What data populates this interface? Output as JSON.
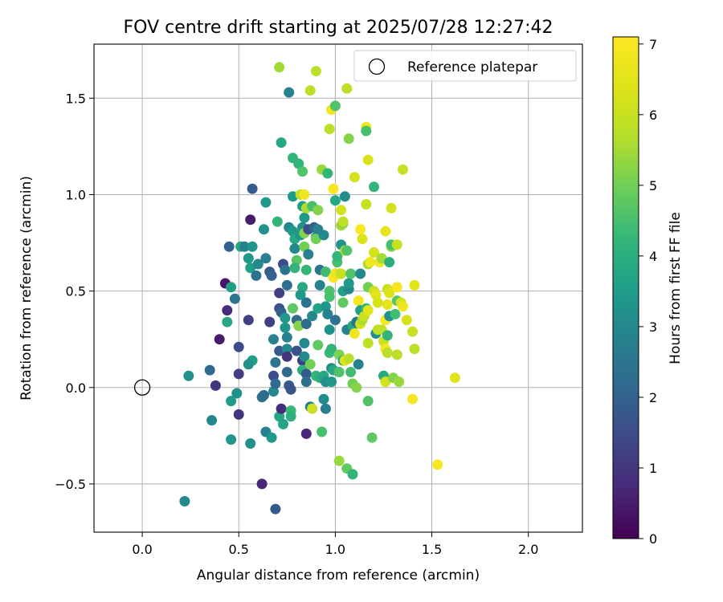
{
  "chart_data": {
    "type": "scatter",
    "title": "FOV centre drift starting at 2025/07/28 12:27:42",
    "xlabel": "Angular distance from reference (arcmin)",
    "ylabel": "Rotation from reference (arcmin)",
    "xlim": [
      -0.25,
      2.28
    ],
    "ylim": [
      -0.75,
      1.78
    ],
    "xticks": [
      0.0,
      0.5,
      1.0,
      1.5,
      2.0
    ],
    "xtick_labels": [
      "0.0",
      "0.5",
      "1.0",
      "1.5",
      "2.0"
    ],
    "yticks": [
      -0.5,
      0.0,
      0.5,
      1.0,
      1.5
    ],
    "ytick_labels": [
      "−0.5",
      "0.0",
      "0.5",
      "1.0",
      "1.5"
    ],
    "grid": true,
    "legend": {
      "placement": "top-right",
      "entries": [
        "Reference platepar"
      ]
    },
    "reference_point": {
      "x": 0.0,
      "y": 0.0,
      "label": "Reference platepar"
    },
    "colorbar": {
      "label": "Hours from first FF file",
      "range": [
        0,
        7.1
      ],
      "ticks": [
        0,
        1,
        2,
        3,
        4,
        5,
        6,
        7
      ],
      "tick_labels": [
        "0",
        "1",
        "2",
        "3",
        "4",
        "5",
        "6",
        "7"
      ],
      "colormap": "viridis"
    },
    "points": [
      [
        0.69,
        -0.63,
        1.8
      ],
      [
        0.62,
        -0.5,
        0.7
      ],
      [
        0.22,
        -0.59,
        3.0
      ],
      [
        0.56,
        -0.29,
        3.2
      ],
      [
        0.46,
        -0.27,
        3.3
      ],
      [
        0.36,
        -0.17,
        3.0
      ],
      [
        0.24,
        0.06,
        3.2
      ],
      [
        0.35,
        0.09,
        2.2
      ],
      [
        0.38,
        0.01,
        1.0
      ],
      [
        0.4,
        0.25,
        0.5
      ],
      [
        0.44,
        0.4,
        0.8
      ],
      [
        0.43,
        0.54,
        0.4
      ],
      [
        0.45,
        0.73,
        2.0
      ],
      [
        0.46,
        0.52,
        3.6
      ],
      [
        0.48,
        0.46,
        2.5
      ],
      [
        0.44,
        0.34,
        3.8
      ],
      [
        0.5,
        0.21,
        1.5
      ],
      [
        0.5,
        0.07,
        1.2
      ],
      [
        0.5,
        -0.14,
        1.0
      ],
      [
        0.49,
        -0.03,
        3.2
      ],
      [
        0.46,
        -0.07,
        3.5
      ],
      [
        0.56,
        0.87,
        0.5
      ],
      [
        0.57,
        1.03,
        1.8
      ],
      [
        0.51,
        0.73,
        3.8
      ],
      [
        0.53,
        0.73,
        2.8
      ],
      [
        0.55,
        0.67,
        3.4
      ],
      [
        0.56,
        0.62,
        3.6
      ],
      [
        0.57,
        0.73,
        3.3
      ],
      [
        0.59,
        0.58,
        2.4
      ],
      [
        0.6,
        0.64,
        3.0
      ],
      [
        0.55,
        0.35,
        1.2
      ],
      [
        0.57,
        0.14,
        3.6
      ],
      [
        0.55,
        0.12,
        3.2
      ],
      [
        0.62,
        -0.05,
        2.5
      ],
      [
        0.64,
        -0.23,
        2.8
      ],
      [
        0.67,
        -0.26,
        3.4
      ],
      [
        0.71,
        -0.15,
        3.8
      ],
      [
        0.73,
        -0.19,
        3.7
      ],
      [
        0.63,
        -0.04,
        2.2
      ],
      [
        0.68,
        -0.02,
        3.0
      ],
      [
        0.63,
        0.82,
        3.2
      ],
      [
        0.64,
        0.96,
        3.4
      ],
      [
        0.66,
        0.6,
        1.8
      ],
      [
        0.64,
        0.67,
        2.8
      ],
      [
        0.67,
        0.58,
        2.0
      ],
      [
        0.66,
        0.34,
        1.2
      ],
      [
        0.68,
        0.25,
        2.8
      ],
      [
        0.69,
        0.13,
        2.5
      ],
      [
        0.68,
        0.06,
        1.5
      ],
      [
        0.69,
        0.02,
        2.2
      ],
      [
        0.71,
        0.19,
        1.8
      ],
      [
        0.7,
        0.86,
        4.2
      ],
      [
        0.72,
        1.27,
        3.8
      ],
      [
        0.71,
        1.66,
        5.5
      ],
      [
        0.73,
        0.64,
        1.5
      ],
      [
        0.71,
        0.41,
        1.6
      ],
      [
        0.71,
        0.49,
        1.2
      ],
      [
        0.72,
        0.39,
        2.0
      ],
      [
        0.74,
        0.61,
        2.5
      ],
      [
        0.75,
        0.53,
        2.3
      ],
      [
        0.74,
        0.36,
        3.4
      ],
      [
        0.74,
        0.31,
        3.3
      ],
      [
        0.75,
        0.26,
        2.8
      ],
      [
        0.75,
        0.2,
        3.0
      ],
      [
        0.75,
        0.16,
        1.0
      ],
      [
        0.75,
        0.08,
        2.2
      ],
      [
        0.76,
        0.01,
        1.8
      ],
      [
        0.77,
        -0.01,
        1.7
      ],
      [
        0.72,
        -0.11,
        0.8
      ],
      [
        0.77,
        -0.12,
        4.3
      ],
      [
        0.77,
        -0.15,
        4.0
      ],
      [
        0.76,
        1.53,
        2.8
      ],
      [
        0.76,
        0.83,
        3.0
      ],
      [
        0.78,
        0.81,
        3.4
      ],
      [
        0.78,
        1.19,
        4.2
      ],
      [
        0.79,
        0.77,
        3.8
      ],
      [
        0.79,
        0.72,
        3.0
      ],
      [
        0.8,
        0.66,
        4.7
      ],
      [
        0.79,
        0.62,
        4.2
      ],
      [
        0.78,
        0.41,
        4.8
      ],
      [
        0.8,
        0.35,
        2.2
      ],
      [
        0.81,
        0.32,
        5.2
      ],
      [
        0.8,
        0.19,
        1.6
      ],
      [
        0.78,
        0.99,
        3.5
      ],
      [
        0.81,
        1.16,
        4.2
      ],
      [
        0.82,
        1.0,
        5.8
      ],
      [
        0.83,
        0.94,
        3.6
      ],
      [
        0.83,
        0.83,
        3.2
      ],
      [
        0.82,
        0.79,
        3.4
      ],
      [
        0.83,
        0.52,
        3.8
      ],
      [
        0.82,
        0.48,
        3.4
      ],
      [
        0.83,
        0.14,
        1.2
      ],
      [
        0.83,
        0.09,
        4.0
      ],
      [
        0.83,
        1.12,
        4.6
      ],
      [
        0.84,
        1.0,
        6.8
      ],
      [
        0.84,
        0.88,
        3.4
      ],
      [
        0.85,
        0.93,
        4.6
      ],
      [
        0.84,
        0.8,
        5.2
      ],
      [
        0.84,
        0.73,
        5.0
      ],
      [
        0.85,
        0.61,
        4.2
      ],
      [
        0.85,
        0.44,
        2.4
      ],
      [
        0.85,
        0.33,
        2.2
      ],
      [
        0.84,
        0.23,
        3.0
      ],
      [
        0.84,
        0.16,
        3.0
      ],
      [
        0.85,
        0.07,
        1.8
      ],
      [
        0.85,
        0.03,
        2.3
      ],
      [
        0.85,
        -0.24,
        0.7
      ],
      [
        0.86,
        0.82,
        1.5
      ],
      [
        0.86,
        0.69,
        2.8
      ],
      [
        0.85,
        0.93,
        5.6
      ],
      [
        0.87,
        1.54,
        5.8
      ],
      [
        0.88,
        0.94,
        4.5
      ],
      [
        0.87,
        0.12,
        5.0
      ],
      [
        0.88,
        0.37,
        3.0
      ],
      [
        0.87,
        -0.1,
        2.8
      ],
      [
        0.88,
        -0.11,
        6.1
      ],
      [
        0.9,
        1.64,
        5.8
      ],
      [
        0.89,
        0.83,
        2.0
      ],
      [
        0.9,
        0.78,
        3.8
      ],
      [
        0.91,
        0.82,
        2.8
      ],
      [
        0.91,
        0.92,
        5.2
      ],
      [
        0.9,
        0.77,
        5.0
      ],
      [
        0.92,
        0.61,
        2.4
      ],
      [
        0.92,
        0.53,
        2.8
      ],
      [
        0.91,
        0.41,
        3.7
      ],
      [
        0.91,
        0.22,
        4.8
      ],
      [
        0.9,
        0.06,
        4.2
      ],
      [
        0.92,
        0.05,
        4.0
      ],
      [
        0.93,
        -0.23,
        4.5
      ],
      [
        0.93,
        1.13,
        5.4
      ],
      [
        0.94,
        0.79,
        3.0
      ],
      [
        0.95,
        0.6,
        4.4
      ],
      [
        0.95,
        0.42,
        3.4
      ],
      [
        0.94,
        0.06,
        3.8
      ],
      [
        0.95,
        0.03,
        3.2
      ],
      [
        0.94,
        -0.06,
        3.1
      ],
      [
        0.95,
        -0.11,
        2.7
      ],
      [
        0.96,
        1.11,
        4.2
      ],
      [
        0.97,
        1.34,
        5.8
      ],
      [
        0.97,
        0.5,
        4.6
      ],
      [
        0.97,
        0.47,
        4.5
      ],
      [
        0.96,
        0.38,
        2.8
      ],
      [
        0.97,
        0.3,
        3.2
      ],
      [
        0.97,
        0.18,
        4.3
      ],
      [
        0.98,
        0.2,
        4.2
      ],
      [
        0.98,
        0.1,
        3.0
      ],
      [
        0.98,
        0.03,
        3.4
      ],
      [
        0.99,
        0.09,
        3.8
      ],
      [
        0.98,
        1.44,
        6.8
      ],
      [
        1.0,
        1.46,
        4.6
      ],
      [
        0.99,
        1.03,
        7.0
      ],
      [
        1.0,
        0.97,
        3.8
      ],
      [
        0.99,
        0.57,
        7.0
      ],
      [
        1.0,
        0.59,
        6.8
      ],
      [
        1.0,
        0.35,
        2.4
      ],
      [
        1.01,
        0.65,
        4.5
      ],
      [
        1.01,
        0.68,
        4.2
      ],
      [
        1.02,
        0.59,
        6.6
      ],
      [
        1.02,
        0.17,
        5.1
      ],
      [
        1.02,
        0.08,
        4.6
      ],
      [
        1.02,
        -0.38,
        5.4
      ],
      [
        1.03,
        0.92,
        6.2
      ],
      [
        1.03,
        0.84,
        5.5
      ],
      [
        1.03,
        0.74,
        3.3
      ],
      [
        1.04,
        0.85,
        5.2
      ],
      [
        1.04,
        0.86,
        5.8
      ],
      [
        1.03,
        0.59,
        6.0
      ],
      [
        1.04,
        0.44,
        4.8
      ],
      [
        1.04,
        0.5,
        3.6
      ],
      [
        1.04,
        0.14,
        4.0
      ],
      [
        1.05,
        0.14,
        6.5
      ],
      [
        1.05,
        0.71,
        5.6
      ],
      [
        1.06,
        0.71,
        4.6
      ],
      [
        1.06,
        0.3,
        2.8
      ],
      [
        1.07,
        0.51,
        3.0
      ],
      [
        1.07,
        0.15,
        5.8
      ],
      [
        1.07,
        0.54,
        3.4
      ],
      [
        1.05,
        0.99,
        3.1
      ],
      [
        1.06,
        1.55,
        5.8
      ],
      [
        1.07,
        1.29,
        5.2
      ],
      [
        1.06,
        -0.42,
        4.8
      ],
      [
        1.08,
        0.59,
        4.6
      ],
      [
        1.08,
        0.08,
        4.4
      ],
      [
        1.09,
        0.32,
        3.8
      ],
      [
        1.09,
        0.02,
        5.0
      ],
      [
        1.09,
        -0.45,
        4.2
      ],
      [
        1.1,
        1.09,
        6.2
      ],
      [
        1.1,
        0.28,
        6.8
      ],
      [
        1.11,
        0.34,
        2.5
      ],
      [
        1.12,
        0.45,
        6.9
      ],
      [
        1.11,
        0.0,
        5.2
      ],
      [
        1.12,
        0.12,
        2.8
      ],
      [
        1.13,
        0.82,
        7.0
      ],
      [
        1.13,
        0.59,
        3.0
      ],
      [
        1.13,
        0.4,
        3.6
      ],
      [
        1.13,
        0.33,
        6.2
      ],
      [
        1.14,
        0.77,
        6.4
      ],
      [
        1.14,
        0.35,
        5.6
      ],
      [
        1.15,
        0.37,
        6.0
      ],
      [
        1.16,
        0.95,
        6.0
      ],
      [
        1.16,
        0.41,
        4.2
      ],
      [
        1.16,
        1.35,
        6.8
      ],
      [
        1.16,
        1.33,
        4.5
      ],
      [
        1.17,
        0.52,
        5.0
      ],
      [
        1.17,
        0.64,
        5.5
      ],
      [
        1.17,
        0.4,
        6.5
      ],
      [
        1.17,
        0.23,
        5.8
      ],
      [
        1.17,
        -0.07,
        4.6
      ],
      [
        1.17,
        1.18,
        6.3
      ],
      [
        1.18,
        0.65,
        6.8
      ],
      [
        1.19,
        -0.26,
        4.8
      ],
      [
        1.2,
        0.7,
        6.2
      ],
      [
        1.2,
        0.5,
        6.1
      ],
      [
        1.21,
        0.48,
        6.5
      ],
      [
        1.2,
        1.04,
        4.2
      ],
      [
        1.21,
        0.28,
        3.2
      ],
      [
        1.22,
        0.44,
        6.3
      ],
      [
        1.22,
        0.3,
        5.9
      ],
      [
        1.23,
        0.65,
        6.8
      ],
      [
        1.24,
        0.67,
        5.5
      ],
      [
        1.24,
        0.3,
        5.9
      ],
      [
        1.25,
        0.06,
        3.8
      ],
      [
        1.25,
        0.24,
        6.1
      ],
      [
        1.26,
        0.35,
        6.9
      ],
      [
        1.26,
        0.81,
        6.6
      ],
      [
        1.26,
        0.2,
        6.9
      ],
      [
        1.27,
        0.18,
        5.8
      ],
      [
        1.27,
        0.27,
        4.2
      ],
      [
        1.26,
        0.03,
        6.2
      ],
      [
        1.27,
        0.43,
        6.6
      ],
      [
        1.27,
        0.51,
        6.0
      ],
      [
        1.28,
        0.37,
        3.2
      ],
      [
        1.28,
        0.65,
        4.0
      ],
      [
        1.28,
        0.49,
        6.4
      ],
      [
        1.29,
        0.93,
        6.2
      ],
      [
        1.29,
        0.73,
        5.2
      ],
      [
        1.29,
        0.74,
        4.5
      ],
      [
        1.3,
        0.05,
        5.2
      ],
      [
        1.31,
        0.38,
        4.4
      ],
      [
        1.32,
        0.52,
        7.0
      ],
      [
        1.32,
        0.45,
        4.7
      ],
      [
        1.32,
        0.74,
        6.0
      ],
      [
        1.32,
        0.17,
        5.8
      ],
      [
        1.33,
        0.03,
        5.4
      ],
      [
        1.34,
        0.44,
        6.2
      ],
      [
        1.35,
        1.13,
        6.0
      ],
      [
        1.35,
        0.42,
        6.8
      ],
      [
        1.37,
        0.35,
        6.3
      ],
      [
        1.4,
        0.29,
        6.0
      ],
      [
        1.4,
        -0.06,
        7.0
      ],
      [
        1.41,
        0.2,
        5.8
      ],
      [
        1.41,
        0.53,
        6.5
      ],
      [
        1.53,
        -0.4,
        7.0
      ],
      [
        1.62,
        0.05,
        6.5
      ]
    ]
  }
}
